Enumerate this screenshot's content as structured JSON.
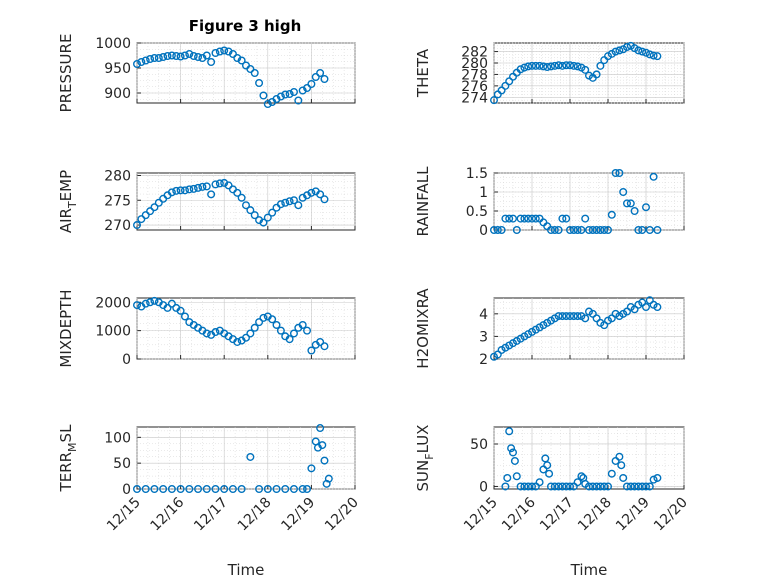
{
  "figure": {
    "title": "Figure 3 high"
  },
  "chart_data": [
    {
      "type": "scatter",
      "ylabel": "PRESSURE",
      "xlabel": "",
      "ylim": [
        880,
        1000
      ],
      "yticks": [
        900,
        950,
        1000
      ],
      "xlim": [
        0,
        5
      ],
      "grid": true,
      "x": [
        0.0,
        0.1,
        0.2,
        0.3,
        0.4,
        0.5,
        0.6,
        0.7,
        0.8,
        0.9,
        1.0,
        1.1,
        1.2,
        1.3,
        1.4,
        1.5,
        1.6,
        1.7,
        1.8,
        1.9,
        2.0,
        2.1,
        2.2,
        2.3,
        2.4,
        2.5,
        2.6,
        2.7,
        2.8,
        2.9,
        3.0,
        3.1,
        3.2,
        3.3,
        3.4,
        3.5,
        3.6,
        3.7,
        3.8,
        3.9,
        4.0,
        4.1,
        4.2,
        4.3
      ],
      "y": [
        958,
        962,
        965,
        968,
        970,
        970,
        972,
        974,
        975,
        974,
        973,
        975,
        978,
        974,
        972,
        970,
        975,
        962,
        980,
        983,
        985,
        983,
        978,
        970,
        965,
        955,
        948,
        940,
        920,
        895,
        878,
        882,
        888,
        893,
        897,
        898,
        902,
        885,
        905,
        910,
        918,
        932,
        940,
        928
      ]
    },
    {
      "type": "scatter",
      "ylabel": "THETA",
      "xlabel": "",
      "ylim": [
        273,
        283.5
      ],
      "yticks": [
        274,
        276,
        278,
        280,
        282
      ],
      "xlim": [
        0,
        5
      ],
      "grid": true,
      "x": [
        0.0,
        0.1,
        0.2,
        0.3,
        0.4,
        0.5,
        0.6,
        0.7,
        0.8,
        0.9,
        1.0,
        1.1,
        1.2,
        1.3,
        1.4,
        1.5,
        1.6,
        1.7,
        1.8,
        1.9,
        2.0,
        2.1,
        2.2,
        2.3,
        2.4,
        2.5,
        2.6,
        2.7,
        2.8,
        2.9,
        3.0,
        3.1,
        3.2,
        3.3,
        3.4,
        3.5,
        3.6,
        3.7,
        3.8,
        3.9,
        4.0,
        4.1,
        4.2,
        4.3
      ],
      "y": [
        273.5,
        274.5,
        275.2,
        276.0,
        276.8,
        277.6,
        278.3,
        278.9,
        279.2,
        279.4,
        279.5,
        279.5,
        279.5,
        279.4,
        279.3,
        279.4,
        279.5,
        279.6,
        279.5,
        279.6,
        279.6,
        279.5,
        279.4,
        279.2,
        278.8,
        277.8,
        277.4,
        278.0,
        279.5,
        280.5,
        281.2,
        281.6,
        282.0,
        282.2,
        282.4,
        282.8,
        283.0,
        282.6,
        282.2,
        282.0,
        281.8,
        281.5,
        281.3,
        281.2
      ]
    },
    {
      "type": "scatter",
      "ylabel": "AIR_TEMP",
      "xlabel": "",
      "ylim": [
        269,
        280.5
      ],
      "yticks": [
        270,
        275,
        280
      ],
      "xlim": [
        0,
        5
      ],
      "grid": true,
      "x": [
        0.0,
        0.1,
        0.2,
        0.3,
        0.4,
        0.5,
        0.6,
        0.7,
        0.8,
        0.9,
        1.0,
        1.1,
        1.2,
        1.3,
        1.4,
        1.5,
        1.6,
        1.7,
        1.8,
        1.9,
        2.0,
        2.1,
        2.2,
        2.3,
        2.4,
        2.5,
        2.6,
        2.7,
        2.8,
        2.9,
        3.0,
        3.1,
        3.2,
        3.3,
        3.4,
        3.5,
        3.6,
        3.7,
        3.8,
        3.9,
        4.0,
        4.1,
        4.2,
        4.3
      ],
      "y": [
        270.0,
        271.2,
        272.0,
        272.8,
        273.6,
        274.5,
        275.3,
        276.0,
        276.6,
        276.9,
        277.0,
        277.0,
        277.2,
        277.3,
        277.5,
        277.7,
        277.8,
        276.2,
        278.2,
        278.4,
        278.5,
        278.0,
        277.2,
        276.5,
        275.5,
        274.0,
        273.0,
        272.0,
        271.0,
        270.5,
        271.5,
        272.5,
        273.5,
        274.2,
        274.5,
        274.8,
        275.0,
        274.0,
        275.5,
        276.0,
        276.5,
        276.8,
        276.2,
        275.2
      ]
    },
    {
      "type": "scatter",
      "ylabel": "RAINFALL",
      "xlabel": "",
      "ylim": [
        0,
        1.5
      ],
      "yticks": [
        0,
        0.5,
        1,
        1.5
      ],
      "xlim": [
        0,
        5
      ],
      "grid": true,
      "x": [
        0.0,
        0.1,
        0.2,
        0.3,
        0.4,
        0.5,
        0.6,
        0.7,
        0.8,
        0.9,
        1.0,
        1.1,
        1.2,
        1.3,
        1.4,
        1.5,
        1.6,
        1.7,
        1.8,
        1.9,
        2.0,
        2.1,
        2.2,
        2.3,
        2.4,
        2.5,
        2.6,
        2.7,
        2.8,
        2.9,
        3.0,
        3.1,
        3.2,
        3.3,
        3.4,
        3.5,
        3.6,
        3.7,
        3.8,
        3.9,
        4.0,
        4.1,
        4.2,
        4.3
      ],
      "y": [
        0,
        0,
        0,
        0.3,
        0.3,
        0.3,
        0,
        0.3,
        0.3,
        0.3,
        0.3,
        0.3,
        0.3,
        0.2,
        0.1,
        0,
        0,
        0,
        0.3,
        0.3,
        0,
        0,
        0,
        0,
        0.3,
        0,
        0,
        0,
        0,
        0,
        0,
        0.4,
        1.5,
        1.5,
        1.0,
        0.7,
        0.7,
        0.5,
        0,
        0,
        0.6,
        0,
        1.4,
        0
      ]
    },
    {
      "type": "scatter",
      "ylabel": "MIXDEPTH",
      "xlabel": "",
      "ylim": [
        0,
        2150
      ],
      "yticks": [
        0,
        1000,
        2000
      ],
      "xlim": [
        0,
        5
      ],
      "grid": true,
      "x": [
        0.0,
        0.1,
        0.2,
        0.3,
        0.4,
        0.5,
        0.6,
        0.7,
        0.8,
        0.9,
        1.0,
        1.1,
        1.2,
        1.3,
        1.4,
        1.5,
        1.6,
        1.7,
        1.8,
        1.9,
        2.0,
        2.1,
        2.2,
        2.3,
        2.4,
        2.5,
        2.6,
        2.7,
        2.8,
        2.9,
        3.0,
        3.1,
        3.2,
        3.3,
        3.4,
        3.5,
        3.6,
        3.7,
        3.8,
        3.9,
        4.0,
        4.1,
        4.2,
        4.3
      ],
      "y": [
        1900,
        1850,
        1950,
        2000,
        2050,
        2000,
        1900,
        1800,
        1950,
        1800,
        1700,
        1500,
        1300,
        1200,
        1100,
        1000,
        900,
        850,
        950,
        1000,
        900,
        800,
        700,
        600,
        650,
        750,
        900,
        1100,
        1300,
        1450,
        1500,
        1400,
        1200,
        1000,
        800,
        700,
        900,
        1100,
        1200,
        1000,
        300,
        500,
        600,
        450
      ]
    },
    {
      "type": "scatter",
      "ylabel": "H2OMIXRA",
      "xlabel": "",
      "ylim": [
        2,
        4.7
      ],
      "yticks": [
        2,
        3,
        4
      ],
      "xlim": [
        0,
        5
      ],
      "grid": true,
      "x": [
        0.0,
        0.1,
        0.2,
        0.3,
        0.4,
        0.5,
        0.6,
        0.7,
        0.8,
        0.9,
        1.0,
        1.1,
        1.2,
        1.3,
        1.4,
        1.5,
        1.6,
        1.7,
        1.8,
        1.9,
        2.0,
        2.1,
        2.2,
        2.3,
        2.4,
        2.5,
        2.6,
        2.7,
        2.8,
        2.9,
        3.0,
        3.1,
        3.2,
        3.3,
        3.4,
        3.5,
        3.6,
        3.7,
        3.8,
        3.9,
        4.0,
        4.1,
        4.2,
        4.3
      ],
      "y": [
        2.1,
        2.2,
        2.4,
        2.5,
        2.6,
        2.7,
        2.8,
        2.9,
        3.0,
        3.1,
        3.2,
        3.3,
        3.4,
        3.5,
        3.6,
        3.7,
        3.8,
        3.9,
        3.9,
        3.9,
        3.9,
        3.9,
        3.9,
        3.9,
        3.8,
        4.1,
        4.0,
        3.8,
        3.6,
        3.5,
        3.7,
        3.8,
        4.0,
        3.9,
        4.0,
        4.1,
        4.3,
        4.2,
        4.4,
        4.5,
        4.3,
        4.6,
        4.4,
        4.3
      ]
    },
    {
      "type": "scatter",
      "ylabel": "TERR_MSL",
      "xlabel": "Time",
      "ylim": [
        0,
        120
      ],
      "yticks": [
        0,
        50,
        100
      ],
      "xlim": [
        0,
        5
      ],
      "xticks": [
        0,
        1,
        2,
        3,
        4,
        5
      ],
      "xticklabels": [
        "12/15",
        "12/16",
        "12/17",
        "12/18",
        "12/19",
        "12/20"
      ],
      "grid": true,
      "x": [
        0.0,
        0.2,
        0.4,
        0.6,
        0.8,
        1.0,
        1.2,
        1.4,
        1.6,
        1.8,
        2.0,
        2.2,
        2.4,
        2.6,
        2.8,
        3.0,
        3.2,
        3.4,
        3.6,
        3.8,
        3.9,
        4.0,
        4.1,
        4.15,
        4.2,
        4.25,
        4.3,
        4.35,
        4.4
      ],
      "y": [
        0,
        0,
        0,
        0,
        0,
        0,
        0,
        0,
        0,
        0,
        0,
        0,
        0,
        62,
        0,
        0,
        0,
        0,
        0,
        0,
        0,
        40,
        92,
        80,
        118,
        85,
        55,
        10,
        20
      ]
    },
    {
      "type": "scatter",
      "ylabel": "SUN_FLUX",
      "xlabel": "Time",
      "ylim": [
        -3,
        70
      ],
      "yticks": [
        0,
        50
      ],
      "xlim": [
        0,
        5
      ],
      "xticks": [
        0,
        1,
        2,
        3,
        4,
        5
      ],
      "xticklabels": [
        "12/15",
        "12/16",
        "12/17",
        "12/18",
        "12/19",
        "12/20"
      ],
      "grid": true,
      "x": [
        0.3,
        0.35,
        0.4,
        0.45,
        0.5,
        0.55,
        0.6,
        0.7,
        0.8,
        0.9,
        1.0,
        1.1,
        1.2,
        1.3,
        1.35,
        1.4,
        1.45,
        1.5,
        1.6,
        1.7,
        1.8,
        1.9,
        2.0,
        2.1,
        2.2,
        2.3,
        2.35,
        2.4,
        2.5,
        2.6,
        2.7,
        2.8,
        2.9,
        3.0,
        3.1,
        3.2,
        3.3,
        3.35,
        3.4,
        3.5,
        3.6,
        3.7,
        3.8,
        3.9,
        4.0,
        4.1,
        4.2,
        4.3
      ],
      "y": [
        0,
        10,
        65,
        45,
        40,
        30,
        12,
        0,
        0,
        0,
        0,
        0,
        5,
        20,
        33,
        25,
        15,
        0,
        0,
        0,
        0,
        0,
        0,
        0,
        5,
        12,
        10,
        3,
        0,
        0,
        0,
        0,
        0,
        0,
        15,
        30,
        35,
        25,
        10,
        0,
        0,
        0,
        0,
        0,
        0,
        0,
        8,
        10
      ]
    }
  ]
}
